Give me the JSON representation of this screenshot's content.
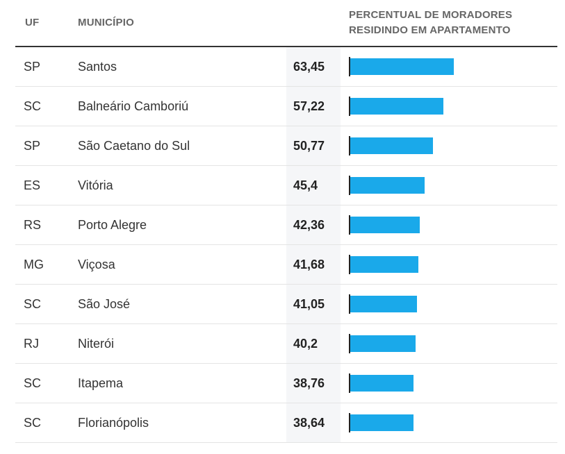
{
  "header": {
    "uf": "UF",
    "municipio": "MUNICÍPIO",
    "percentual_line1": "PERCENTUAL DE MORADORES",
    "percentual_line2": "RESIDINDO EM APARTAMENTO"
  },
  "colors": {
    "bar": "#1aa9ea",
    "axis": "#222222"
  },
  "chart_data": {
    "type": "table",
    "title": "",
    "columns": [
      "UF",
      "MUNICÍPIO",
      "PERCENTUAL DE MORADORES RESIDINDO EM APARTAMENTO"
    ],
    "bar_max": 100,
    "rows": [
      {
        "uf": "SP",
        "municipio": "Santos",
        "value": "63,45",
        "num": 63.45
      },
      {
        "uf": "SC",
        "municipio": "Balneário Camboriú",
        "value": "57,22",
        "num": 57.22
      },
      {
        "uf": "SP",
        "municipio": "São Caetano do Sul",
        "value": "50,77",
        "num": 50.77
      },
      {
        "uf": "ES",
        "municipio": "Vitória",
        "value": "45,4",
        "num": 45.4
      },
      {
        "uf": "RS",
        "municipio": "Porto Alegre",
        "value": "42,36",
        "num": 42.36
      },
      {
        "uf": "MG",
        "municipio": "Viçosa",
        "value": "41,68",
        "num": 41.68
      },
      {
        "uf": "SC",
        "municipio": "São José",
        "value": "41,05",
        "num": 41.05
      },
      {
        "uf": "RJ",
        "municipio": "Niterói",
        "value": "40,2",
        "num": 40.2
      },
      {
        "uf": "SC",
        "municipio": "Itapema",
        "value": "38,76",
        "num": 38.76
      },
      {
        "uf": "SC",
        "municipio": "Florianópolis",
        "value": "38,64",
        "num": 38.64
      }
    ]
  }
}
